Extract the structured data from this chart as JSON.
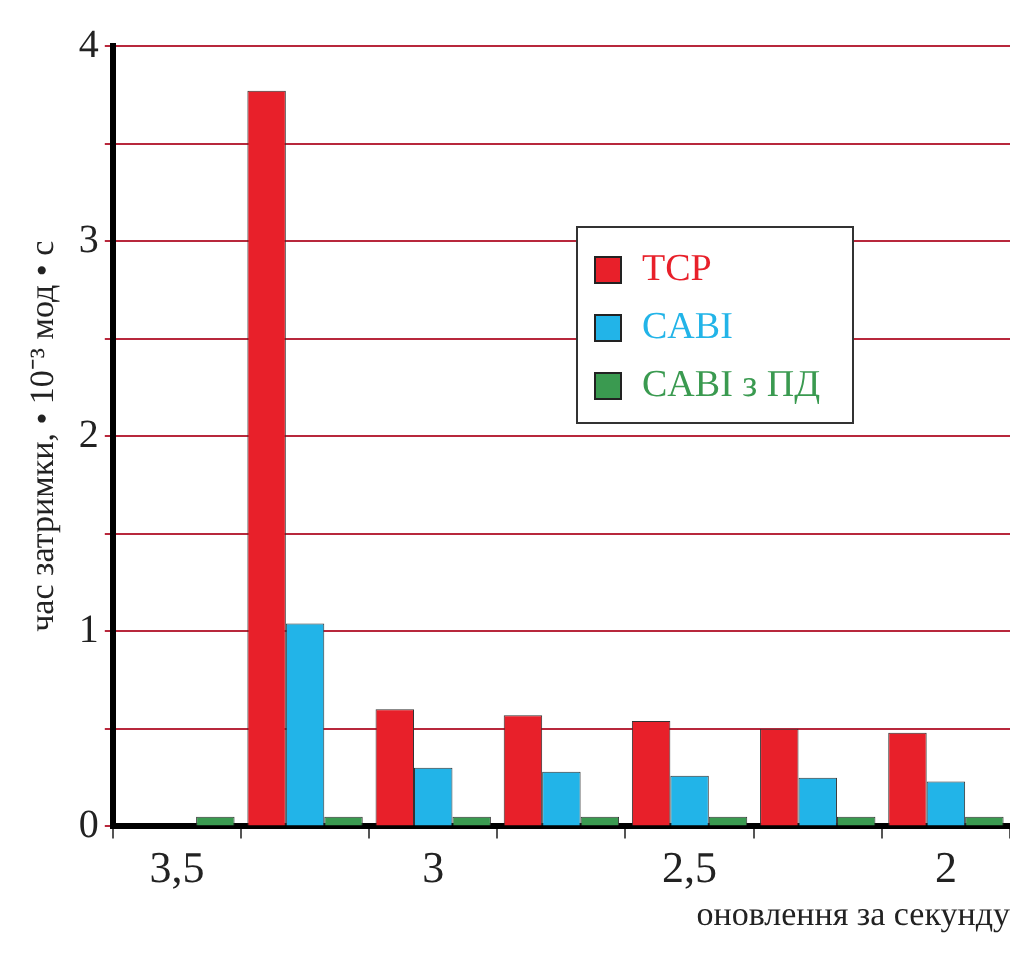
{
  "chart_data": {
    "type": "bar",
    "xlabel": "оновлення за секунду",
    "ylabel": "час затримки, • 10⁻³ мод • с",
    "categories": [
      "3,5",
      null,
      "3",
      null,
      "2,5",
      null,
      "2"
    ],
    "series": [
      {
        "name": "TCP",
        "color": "#e8202a",
        "values": [
          0,
          3.77,
          0.6,
          0.57,
          0.54,
          0.5,
          0.48
        ]
      },
      {
        "name": "CABI",
        "color": "#22b4e8",
        "values": [
          0,
          1.04,
          0.3,
          0.28,
          0.26,
          0.25,
          0.23
        ]
      },
      {
        "name": "CABI з ПД",
        "color": "#3a9a50",
        "values": [
          0.05,
          0.05,
          0.05,
          0.05,
          0.05,
          0.05,
          0.05
        ]
      }
    ],
    "ylim": [
      0,
      4
    ],
    "yticks": [
      0,
      {
        "value": 0.5,
        "label": null
      },
      1,
      {
        "value": 1.5,
        "label": null
      },
      2,
      {
        "value": 2.5,
        "label": null
      },
      3,
      {
        "value": 3.5,
        "label": null
      },
      4
    ],
    "grid": "y",
    "legend": "top right"
  }
}
